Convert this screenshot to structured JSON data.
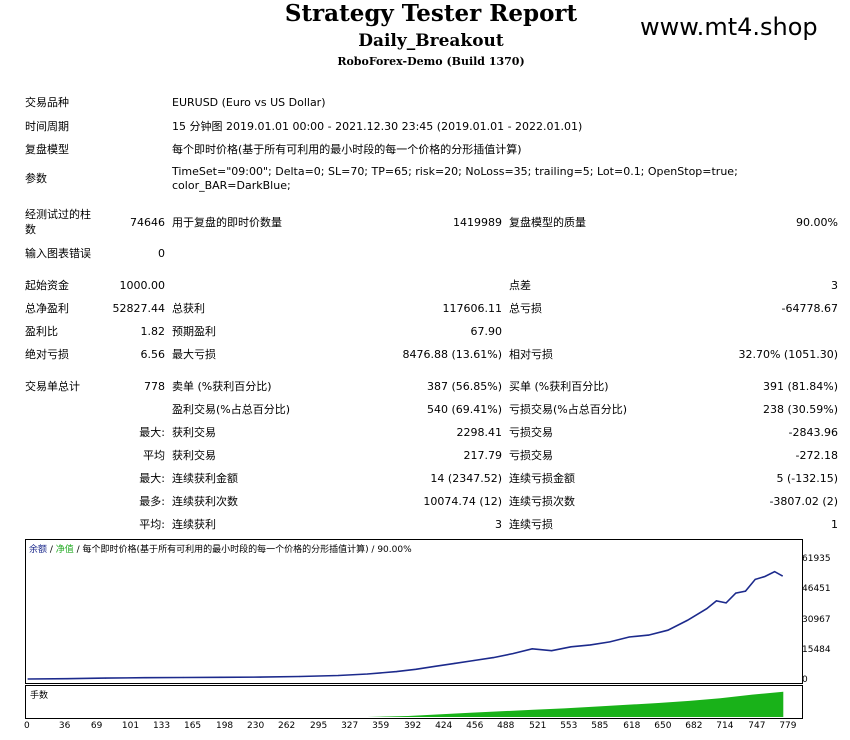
{
  "header": {
    "title": "Strategy Tester Report",
    "ea_name": "Daily_Breakout",
    "server_build": "RoboForex-Demo (Build 1370)",
    "watermark": "www.mt4.shop"
  },
  "info": {
    "symbol_label": "交易品种",
    "symbol_value": "EURUSD (Euro vs US Dollar)",
    "period_label": "时间周期",
    "period_value": "15 分钟图 2019.01.01 00:00 - 2021.12.30 23:45 (2019.01.01 - 2022.01.01)",
    "model_label": "复盘模型",
    "model_value": "每个即时价格(基于所有可利用的最小时段的每一个价格的分形插值计算)",
    "params_label": "参数",
    "params_line1": "TimeSet=\"09:00\"; Delta=0; SL=70; TP=65; risk=20; NoLoss=35; trailing=5; Lot=0.1; OpenStop=true;",
    "params_line2": "color_BAR=DarkBlue;"
  },
  "stats": {
    "bars_label_1": "经测试过的柱",
    "bars_label_2": "数",
    "bars_value": "74646",
    "ticks_label": "用于复盘的即时价数量",
    "ticks_value": "1419989",
    "quality_label": "复盘模型的质量",
    "quality_value": "90.00%",
    "errors_label": "输入图表错误",
    "errors_value": "0",
    "deposit_label": "起始资金",
    "deposit_value": "1000.00",
    "spread_label": "点差",
    "spread_value": "3",
    "net_label": "总净盈利",
    "net_value": "52827.44",
    "gross_profit_label": "总获利",
    "gross_profit_value": "117606.11",
    "gross_loss_label": "总亏损",
    "gross_loss_value": "-64778.67",
    "pf_label": "盈利比",
    "pf_value": "1.82",
    "payoff_label": "预期盈利",
    "payoff_value": "67.90",
    "abs_dd_label": "绝对亏损",
    "abs_dd_value": "6.56",
    "max_dd_label": "最大亏损",
    "max_dd_value": "8476.88 (13.61%)",
    "rel_dd_label": "相对亏损",
    "rel_dd_value": "32.70% (1051.30)",
    "trades_label": "交易单总计",
    "trades_value": "778",
    "short_label": "卖单 (%获利百分比)",
    "short_value": "387 (56.85%)",
    "long_label": "买单 (%获利百分比)",
    "long_value": "391 (81.84%)",
    "profit_trades_label": "盈利交易(%占总百分比)",
    "profit_trades_value": "540 (69.41%)",
    "loss_trades_label": "亏损交易(%占总百分比)",
    "loss_trades_value": "238 (30.59%)",
    "largest_prefix": "最大:",
    "largest_profit_label": "获利交易",
    "largest_profit_value": "2298.41",
    "largest_loss_label": "亏损交易",
    "largest_loss_value": "-2843.96",
    "avg_prefix": "平均",
    "avg_profit_label": "获利交易",
    "avg_profit_value": "217.79",
    "avg_loss_label": "亏损交易",
    "avg_loss_value": "-272.18",
    "max_cons_prefix": "最大:",
    "max_cons_win_label": "连续获利金额",
    "max_cons_win_value": "14 (2347.52)",
    "max_cons_loss_label": "连续亏损金额",
    "max_cons_loss_value": "5 (-132.15)",
    "most_prefix": "最多:",
    "most_win_label": "连续获利次数",
    "most_win_value": "10074.74 (12)",
    "most_loss_label": "连续亏损次数",
    "most_loss_value": "-3807.02 (2)",
    "avg_cons_prefix": "平均:",
    "avg_cons_win_label": "连续获利",
    "avg_cons_win_value": "3",
    "avg_cons_loss_label": "连续亏损",
    "avg_cons_loss_value": "1"
  },
  "chart_legend": {
    "balance": "余额",
    "sep1": " / ",
    "equity": "净值",
    "rest": " / 每个即时价格(基于所有可利用的最小时段的每一个价格的分形插值计算) / 90.00%"
  },
  "lots_label": "手数",
  "colors": {
    "balance_line": "#1c2a8c",
    "equity_line": "#22aa22",
    "lots_fill": "#19b219"
  },
  "chart_data": {
    "type": "line",
    "ylim": [
      0,
      61935
    ],
    "yticks": [
      "61935",
      "46451",
      "30967",
      "15484",
      "0"
    ],
    "xticks": [
      "0",
      "36",
      "69",
      "101",
      "133",
      "165",
      "198",
      "230",
      "262",
      "295",
      "327",
      "359",
      "392",
      "424",
      "456",
      "488",
      "521",
      "553",
      "585",
      "618",
      "650",
      "682",
      "714",
      "747",
      "779"
    ],
    "xlim": [
      0,
      790
    ],
    "series": [
      {
        "x": [
          0,
          40,
          80,
          120,
          160,
          200,
          240,
          280,
          320,
          350,
          380,
          400,
          420,
          440,
          460,
          480,
          500,
          520,
          540,
          560,
          580,
          600,
          620,
          640,
          660,
          680,
          700,
          710,
          720,
          730,
          740,
          750,
          760,
          770,
          778
        ],
        "values": [
          1000,
          1200,
          1500,
          1700,
          1800,
          1900,
          2000,
          2300,
          2800,
          3600,
          4800,
          6000,
          7500,
          9000,
          10500,
          12000,
          14000,
          16500,
          15500,
          17500,
          18500,
          20000,
          22500,
          23500,
          26000,
          31000,
          37000,
          41000,
          40000,
          45000,
          46000,
          52000,
          53500,
          56000,
          53800
        ]
      }
    ],
    "lots": {
      "x": [
        0,
        350,
        392,
        424,
        456,
        488,
        521,
        553,
        585,
        618,
        650,
        682,
        714,
        747,
        779
      ],
      "values": [
        0,
        0,
        0.04,
        0.1,
        0.16,
        0.22,
        0.28,
        0.33,
        0.4,
        0.47,
        0.54,
        0.62,
        0.72,
        0.86,
        0.97
      ]
    }
  }
}
